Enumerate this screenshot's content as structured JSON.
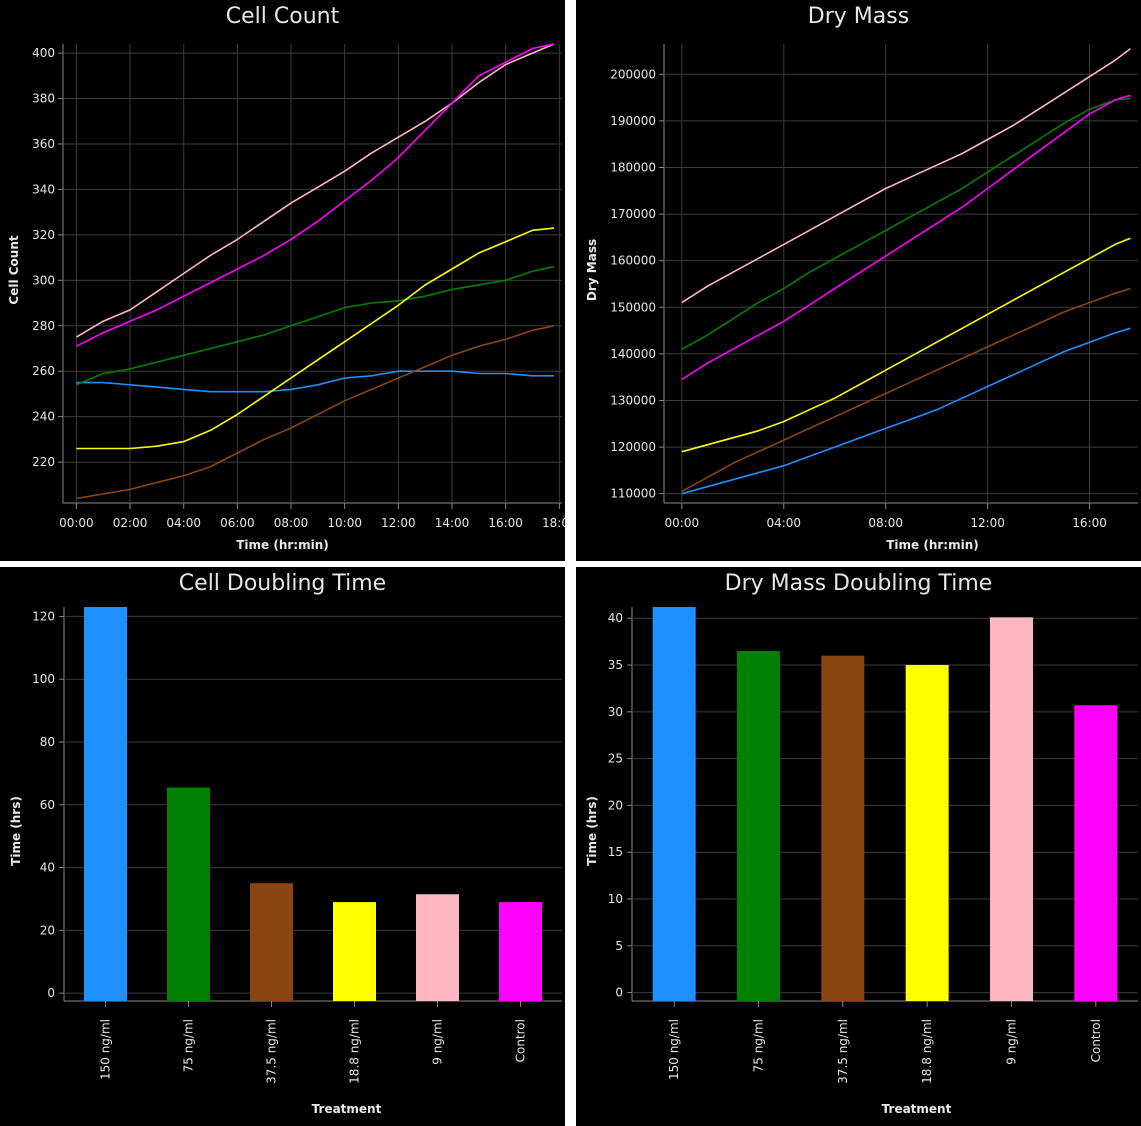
{
  "chart_data": [
    {
      "type": "line",
      "title": "Cell Count",
      "xlabel": "Time (hr:min)",
      "ylabel": "Cell Count",
      "x_ticks": [
        "00:00",
        "02:00",
        "04:00",
        "06:00",
        "08:00",
        "10:00",
        "12:00",
        "14:00",
        "16:00",
        "18:00"
      ],
      "y_ticks": [
        220,
        240,
        260,
        280,
        300,
        320,
        340,
        360,
        380,
        400
      ],
      "xlim": [
        -0.5,
        18.1
      ],
      "ylim": [
        202,
        404
      ],
      "grid": true,
      "x": [
        0,
        1,
        2,
        3,
        4,
        5,
        6,
        7,
        8,
        9,
        10,
        11,
        12,
        13,
        14,
        15,
        16,
        17,
        17.8
      ],
      "series": [
        {
          "color": "#1e90ff",
          "values": [
            255,
            255,
            254,
            253,
            252,
            251,
            251,
            251,
            252,
            254,
            257,
            258,
            260,
            260,
            260,
            259,
            259,
            258,
            258
          ]
        },
        {
          "color": "#008000",
          "values": [
            254,
            259,
            261,
            264,
            267,
            270,
            273,
            276,
            280,
            284,
            288,
            290,
            291,
            293,
            296,
            298,
            300,
            304,
            306
          ]
        },
        {
          "color": "#8b4513",
          "values": [
            204,
            206,
            208,
            211,
            214,
            218,
            224,
            230,
            235,
            241,
            247,
            252,
            257,
            262,
            267,
            271,
            274,
            278,
            280
          ]
        },
        {
          "color": "#ffff00",
          "values": [
            226,
            226,
            226,
            227,
            229,
            234,
            241,
            249,
            257,
            265,
            273,
            281,
            289,
            298,
            305,
            312,
            317,
            322,
            323
          ]
        },
        {
          "color": "#ffb6c1",
          "values": [
            275,
            282,
            287,
            295,
            303,
            311,
            318,
            326,
            334,
            341,
            348,
            356,
            363,
            370,
            378,
            387,
            395,
            400,
            404
          ]
        },
        {
          "color": "#ff00ff",
          "values": [
            271,
            277,
            282,
            287,
            293,
            299,
            305,
            311,
            318,
            326,
            335,
            344,
            354,
            366,
            378,
            390,
            396,
            402,
            404
          ]
        }
      ]
    },
    {
      "type": "line",
      "title": "Dry Mass",
      "xlabel": "Time (hr:min)",
      "ylabel": "Dry Mass",
      "x_ticks": [
        "00:00",
        "04:00",
        "08:00",
        "12:00",
        "16:00"
      ],
      "y_ticks": [
        110000,
        120000,
        130000,
        140000,
        150000,
        160000,
        170000,
        180000,
        190000,
        200000
      ],
      "xlim": [
        -0.7,
        17.9
      ],
      "ylim": [
        108000,
        206500
      ],
      "grid": true,
      "x": [
        0,
        1,
        2,
        3,
        4,
        5,
        6,
        7,
        8,
        9,
        10,
        11,
        12,
        13,
        14,
        15,
        16,
        17,
        17.6
      ],
      "series": [
        {
          "color": "#1e90ff",
          "values": [
            110000,
            111500,
            113000,
            114500,
            116000,
            118000,
            120000,
            122000,
            124000,
            126000,
            128000,
            130500,
            133000,
            135500,
            138000,
            140500,
            142500,
            144500,
            145500
          ]
        },
        {
          "color": "#008000",
          "values": [
            141000,
            144000,
            147500,
            151000,
            154000,
            157500,
            160500,
            163500,
            166500,
            169500,
            172500,
            175500,
            179000,
            182500,
            186000,
            189500,
            192500,
            194500,
            194800
          ]
        },
        {
          "color": "#8b4513",
          "values": [
            110500,
            113500,
            116500,
            119000,
            121500,
            124000,
            126500,
            129000,
            131500,
            134000,
            136500,
            139000,
            141500,
            144000,
            146500,
            149000,
            151000,
            153000,
            154000
          ]
        },
        {
          "color": "#ffff00",
          "values": [
            119000,
            120500,
            122000,
            123500,
            125500,
            128000,
            130500,
            133500,
            136500,
            139500,
            142500,
            145500,
            148500,
            151500,
            154500,
            157500,
            160500,
            163500,
            164800
          ]
        },
        {
          "color": "#ffb6c1",
          "values": [
            151000,
            154500,
            157500,
            160500,
            163500,
            166500,
            169500,
            172500,
            175500,
            178000,
            180500,
            183000,
            186000,
            189000,
            192500,
            196000,
            199500,
            203000,
            205500
          ]
        },
        {
          "color": "#ff00ff",
          "values": [
            134500,
            138000,
            141000,
            144000,
            147000,
            150500,
            154000,
            157500,
            161000,
            164500,
            168000,
            171500,
            175500,
            179500,
            183500,
            187500,
            191500,
            194500,
            195500
          ]
        }
      ]
    },
    {
      "type": "bar",
      "title": "Cell Doubling Time",
      "xlabel": "Treatment",
      "ylabel": "Time (hrs)",
      "categories": [
        "150 ng/ml",
        "75 ng/ml",
        "37.5 ng/ml",
        "18.8 ng/ml",
        "9 ng/ml",
        "Control"
      ],
      "values": [
        123,
        65.5,
        35,
        29,
        31.5,
        29
      ],
      "colors": [
        "#1e90ff",
        "#008000",
        "#8b4513",
        "#ffff00",
        "#ffb6c1",
        "#ff00ff"
      ],
      "y_ticks": [
        0,
        20,
        40,
        60,
        80,
        100,
        120
      ],
      "ylim": [
        -2.5,
        123
      ],
      "grid": true
    },
    {
      "type": "bar",
      "title": "Dry Mass Doubling Time",
      "xlabel": "Treatment",
      "ylabel": "Time (hrs)",
      "categories": [
        "150 ng/ml",
        "75 ng/ml",
        "37.5 ng/ml",
        "18.8 ng/ml",
        "9 ng/ml",
        "Control"
      ],
      "values": [
        41.2,
        36.5,
        36,
        35,
        40.1,
        30.7
      ],
      "colors": [
        "#1e90ff",
        "#008000",
        "#8b4513",
        "#ffff00",
        "#ffb6c1",
        "#ff00ff"
      ],
      "y_ticks": [
        0,
        5,
        10,
        15,
        20,
        25,
        30,
        35,
        40
      ],
      "ylim": [
        -0.9,
        41.2
      ],
      "grid": true
    }
  ]
}
